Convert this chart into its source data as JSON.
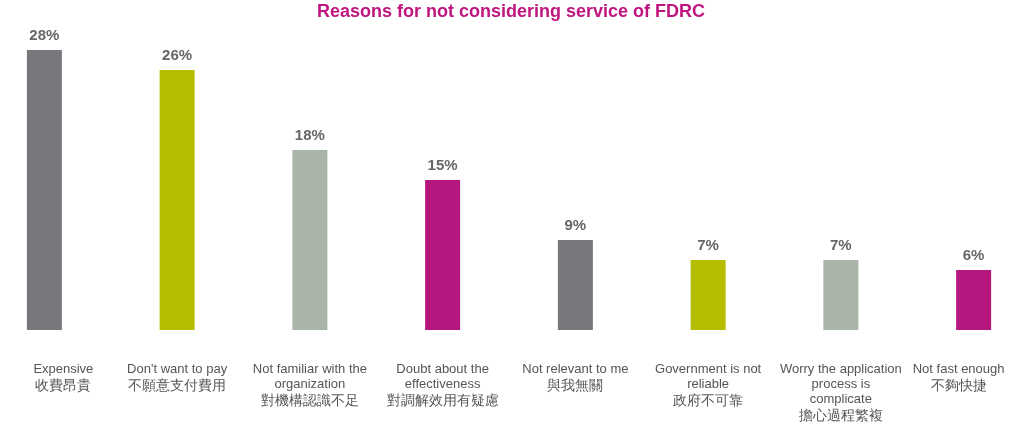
{
  "chart_data": {
    "type": "bar",
    "title": "Reasons for not considering service of FDRC",
    "categories": [
      "Expensive\n收費昂貴",
      "Don't want to pay\n不願意支付費用",
      "Not familiar with the organization\n對機構認識不足",
      "Doubt about the effectiveness\n對調解效用有疑慮",
      "Not relevant to me\n與我無關",
      "Government is not reliable\n政府不可靠",
      "Worry the application process is complicate\n擔心過程繁複",
      "Not fast enough\n不夠快捷"
    ],
    "values": [
      28,
      26,
      18,
      15,
      9,
      7,
      7,
      6
    ],
    "value_labels": [
      "28%",
      "26%",
      "18%",
      "15%",
      "9%",
      "7%",
      "7%",
      "6%"
    ],
    "colors": [
      "#77787b",
      "#b5bd00",
      "#a9b5a8",
      "#b5177f",
      "#77787b",
      "#b5bd00",
      "#a9b5a8",
      "#b5177f"
    ]
  }
}
